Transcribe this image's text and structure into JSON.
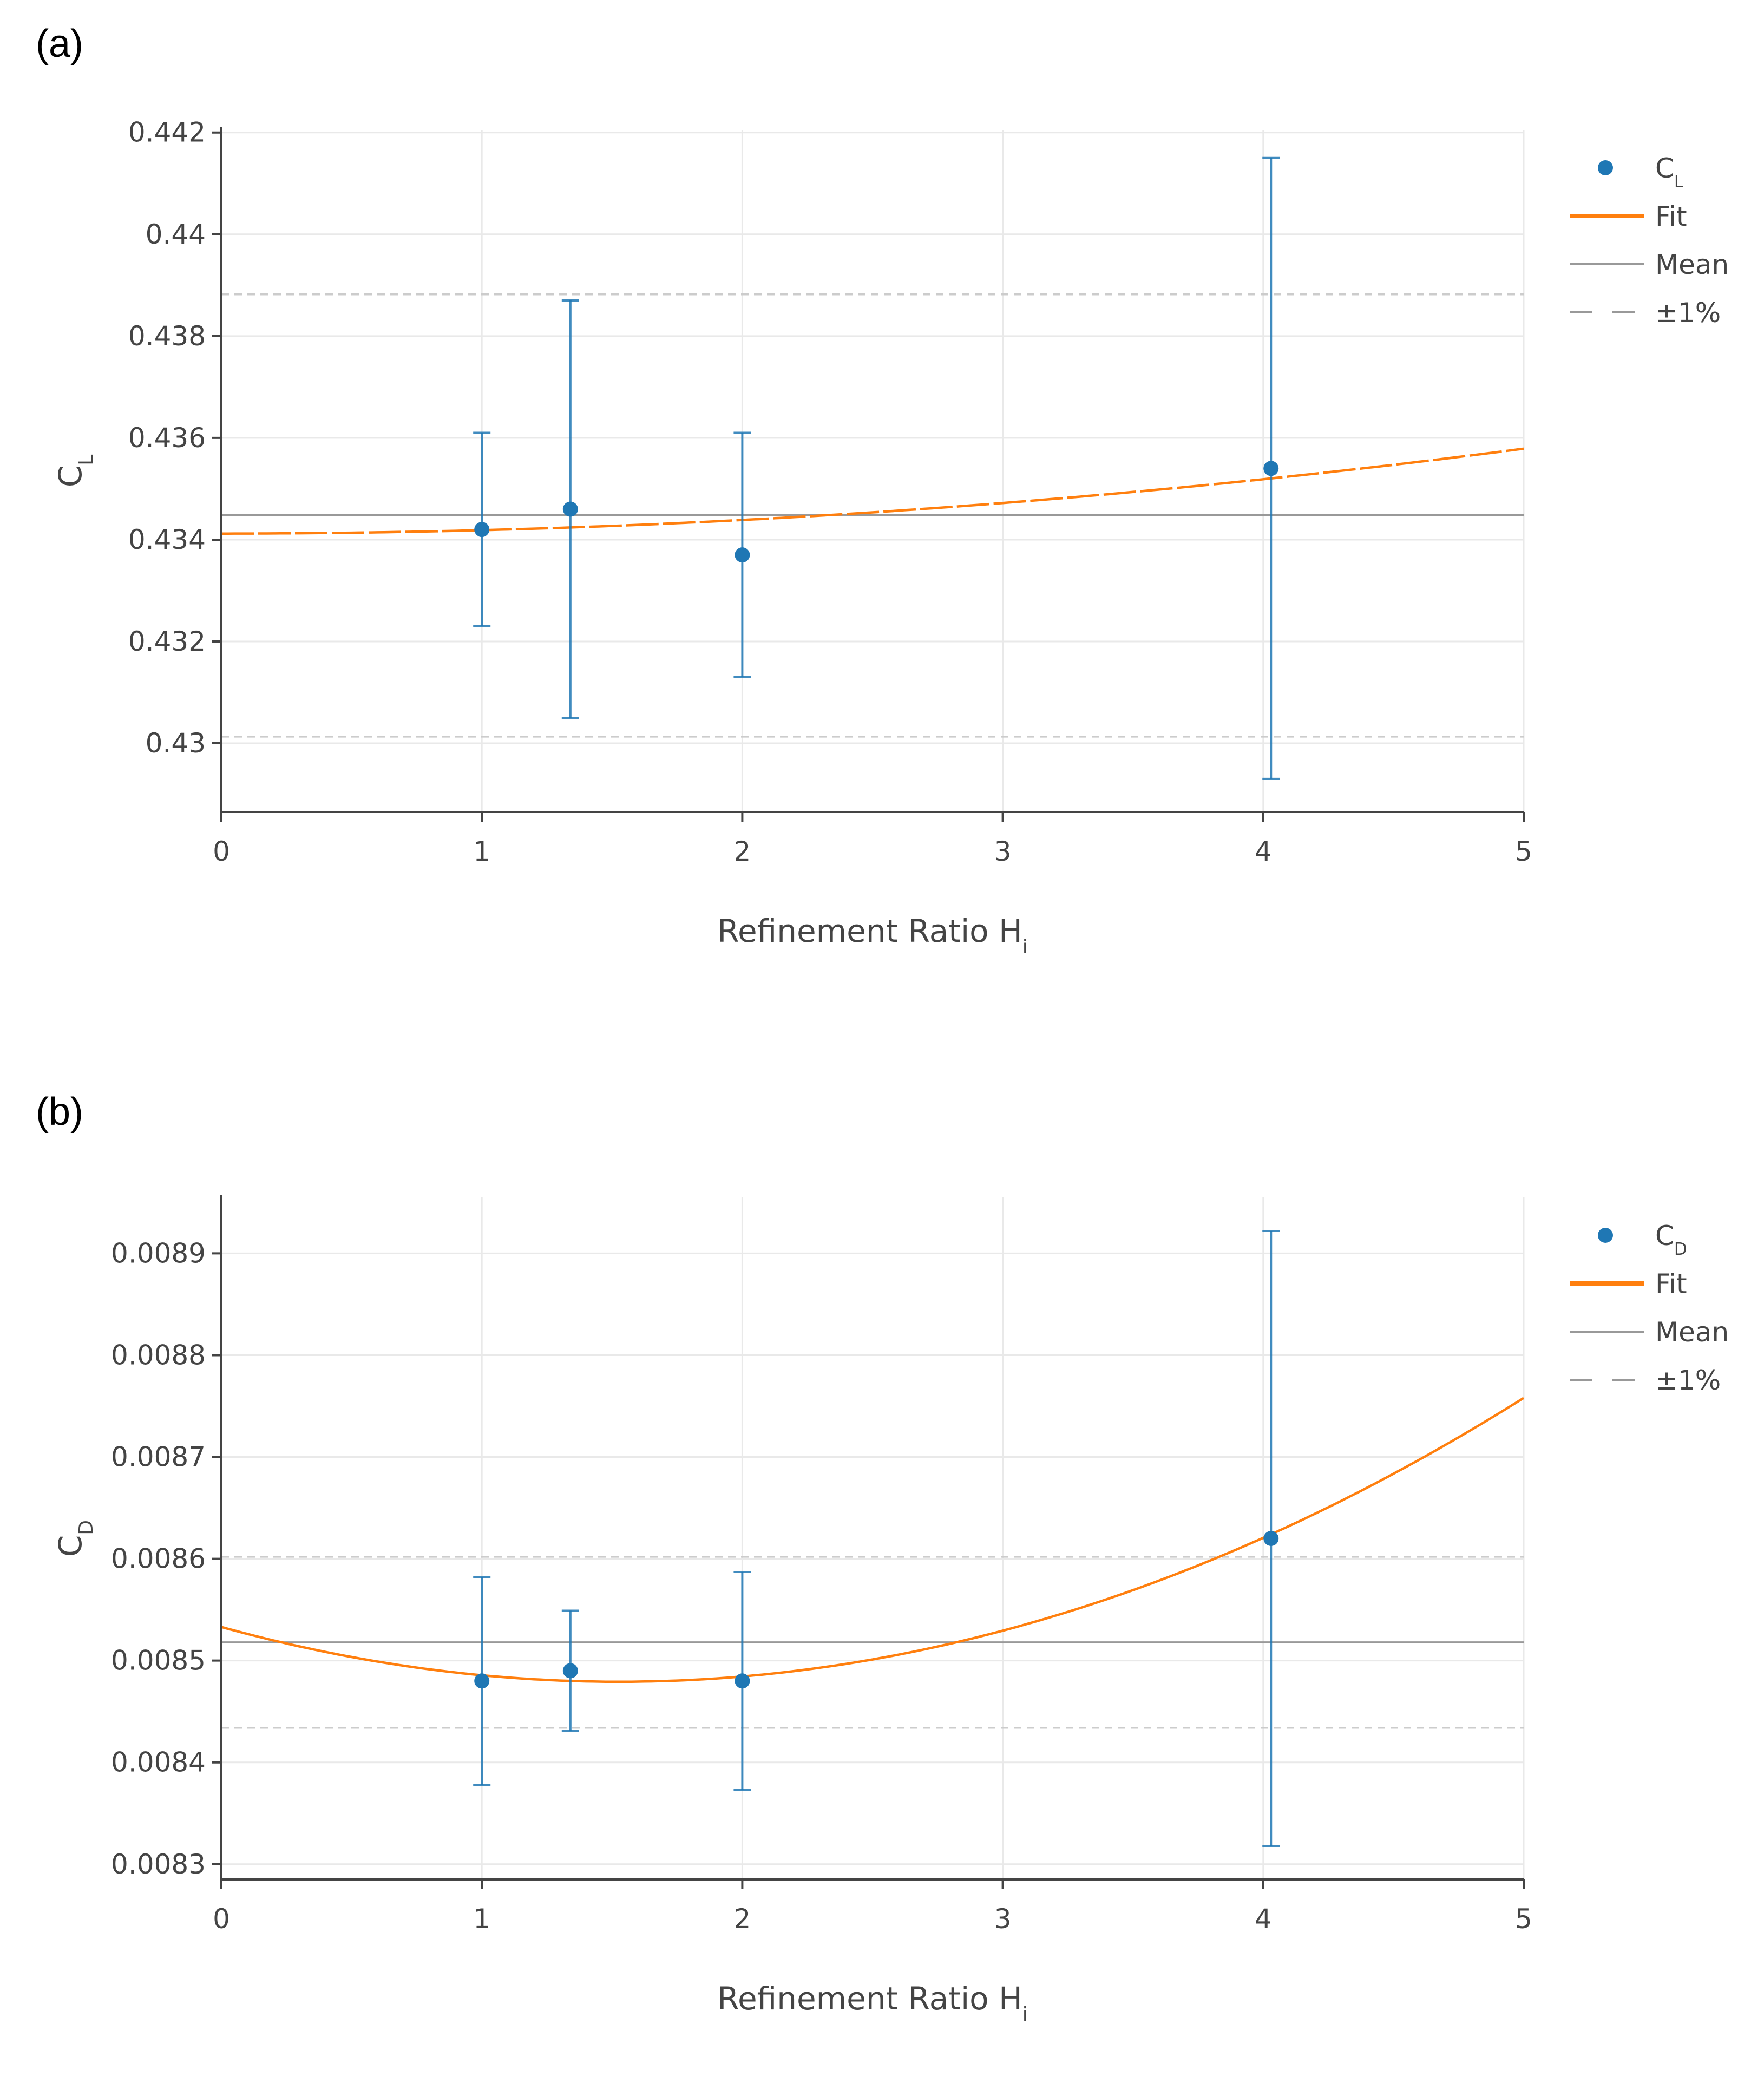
{
  "panels": {
    "a": "(a)",
    "b": "(b)"
  },
  "colors": {
    "points": "#1f77b4",
    "fit": "#ff7f0e",
    "mean": "#999999",
    "band": "#cccccc",
    "grid": "#e9e9e9"
  },
  "chart_data": [
    {
      "type": "scatter",
      "id": "a",
      "ylabel_main": "C",
      "ylabel_sub": "L",
      "xlabel_main": "Refinement Ratio H",
      "xlabel_sub": "i",
      "xlim": [
        0,
        5
      ],
      "ylim": [
        0.42865,
        0.44205
      ],
      "xticks": [
        0,
        1,
        2,
        3,
        4,
        5
      ],
      "xtick_labels": [
        "0",
        "1",
        "2",
        "3",
        "4",
        "5"
      ],
      "yticks": [
        0.43,
        0.432,
        0.434,
        0.436,
        0.438,
        0.44,
        0.442
      ],
      "ytick_labels": [
        "0.43",
        "0.432",
        "0.434",
        "0.436",
        "0.438",
        "0.44",
        "0.442"
      ],
      "points": [
        {
          "x": 1.0,
          "y": 0.4342,
          "err": 0.0019
        },
        {
          "x": 1.34,
          "y": 0.4346,
          "err": 0.0041
        },
        {
          "x": 2.0,
          "y": 0.4337,
          "err": 0.0024
        },
        {
          "x": 4.03,
          "y": 0.4354,
          "err": 0.0061
        }
      ],
      "fit": {
        "a": 0.43412,
        "b": 0.0,
        "c": 6.67e-05
      },
      "mean": 0.43448,
      "band": [
        0.43013,
        0.43882
      ],
      "legend": [
        {
          "kind": "point",
          "label_main": "C",
          "label_sub": "L"
        },
        {
          "kind": "fit",
          "label_main": "Fit",
          "label_sub": ""
        },
        {
          "kind": "mean",
          "label_main": "Mean",
          "label_sub": ""
        },
        {
          "kind": "band",
          "label_main": "±1%",
          "label_sub": ""
        }
      ]
    },
    {
      "type": "scatter",
      "id": "b",
      "ylabel_main": "C",
      "ylabel_sub": "D",
      "xlabel_main": "Refinement Ratio H",
      "xlabel_sub": "i",
      "xlim": [
        0,
        5
      ],
      "ylim": [
        0.008285,
        0.008955
      ],
      "xticks": [
        0,
        1,
        2,
        3,
        4,
        5
      ],
      "xtick_labels": [
        "0",
        "1",
        "2",
        "3",
        "4",
        "5"
      ],
      "yticks": [
        0.0083,
        0.0084,
        0.0085,
        0.0086,
        0.0087,
        0.0088,
        0.0089
      ],
      "ytick_labels": [
        "0.0083",
        "0.0084",
        "0.0085",
        "0.0086",
        "0.0087",
        "0.0088",
        "0.0089"
      ],
      "points": [
        {
          "x": 1.0,
          "y": 0.00848,
          "err": 0.000102
        },
        {
          "x": 1.34,
          "y": 0.00849,
          "err": 5.9e-05
        },
        {
          "x": 2.0,
          "y": 0.00848,
          "err": 0.000107
        },
        {
          "x": 4.03,
          "y": 0.00862,
          "err": 0.000302
        }
      ],
      "fit": {
        "a": 0.008533,
        "b": -7.05e-05,
        "c": 2.31e-05
      },
      "mean": 0.008518,
      "band": [
        0.008434,
        0.008602
      ],
      "legend": [
        {
          "kind": "point",
          "label_main": "C",
          "label_sub": "D"
        },
        {
          "kind": "fit",
          "label_main": "Fit",
          "label_sub": ""
        },
        {
          "kind": "mean",
          "label_main": "Mean",
          "label_sub": ""
        },
        {
          "kind": "band",
          "label_main": "±1%",
          "label_sub": ""
        }
      ]
    }
  ]
}
